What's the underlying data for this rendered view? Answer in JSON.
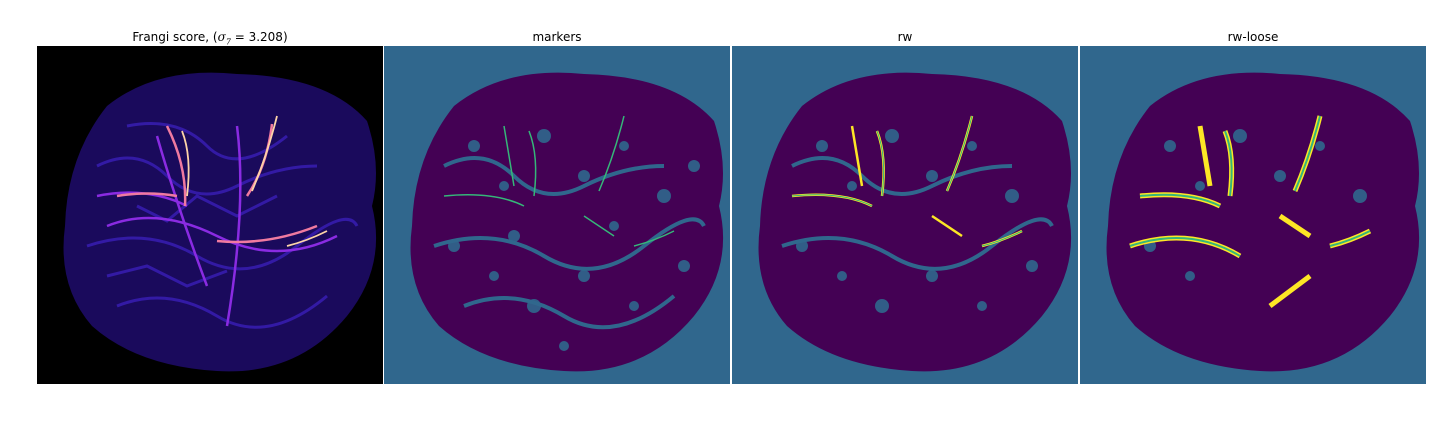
{
  "panels": [
    {
      "title": "Frangi score, (",
      "title_math": "σ",
      "title_sub": "7",
      "title_rest": " = 3.208)",
      "cmap": "magma"
    },
    {
      "title": "markers",
      "cmap": "viridis"
    },
    {
      "title": "rw",
      "cmap": "viridis"
    },
    {
      "title": "rw-loose",
      "cmap": "viridis"
    }
  ],
  "colors": {
    "background_black": "#000000",
    "viridis_bg": "#30678d",
    "viridis_dark": "#440154",
    "viridis_mid": "#35b779",
    "viridis_yellow": "#fde725",
    "magma_dark": "#1a0a5c",
    "magma_blue": "#3a1fb8",
    "magma_purple": "#8a2be2",
    "magma_pink": "#f07aa0",
    "magma_light": "#fcd3a8"
  }
}
